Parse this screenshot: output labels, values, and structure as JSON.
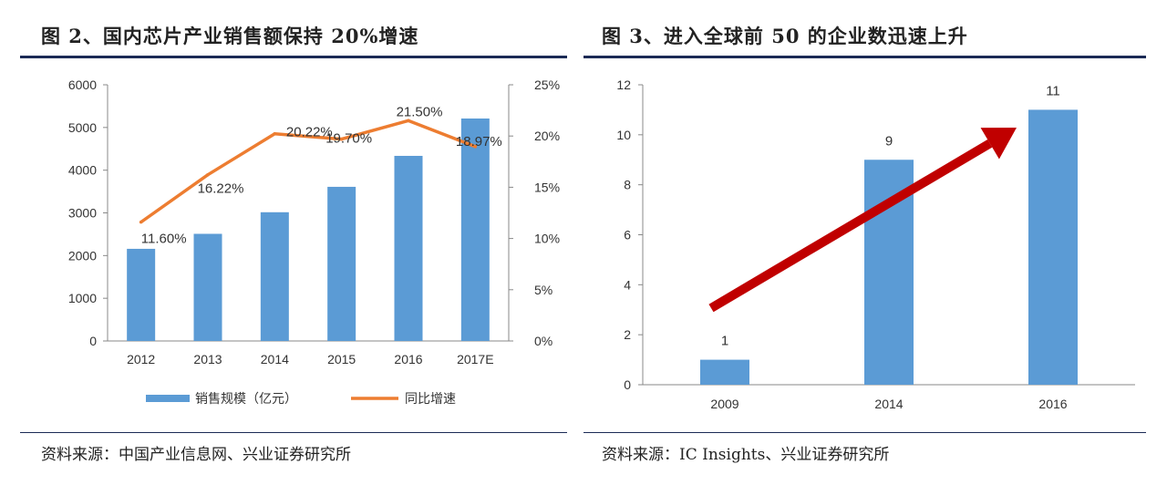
{
  "figures": [
    {
      "title": "图 2、国内芯片产业销售额保持 20%增速",
      "source": "资料来源：中国产业信息网、兴业证券研究所"
    },
    {
      "title": "图 3、进入全球前 50 的企业数迅速上升",
      "source": "资料来源：IC Insights、兴业证券研究所"
    }
  ],
  "colors": {
    "bar": "#5b9bd5",
    "line": "#ed7d31",
    "arrow": "#c00000",
    "rule": "#1b2a55"
  },
  "chart_data": [
    {
      "type": "bar+line",
      "title": "图 2、国内芯片产业销售额保持 20%增速",
      "categories": [
        "2012",
        "2013",
        "2014",
        "2015",
        "2016",
        "2017E"
      ],
      "series": [
        {
          "name": "销售规模（亿元）",
          "type": "bar",
          "axis": "left",
          "values": [
            2158,
            2509,
            3015,
            3610,
            4335,
            5210
          ]
        },
        {
          "name": "同比增速",
          "type": "line",
          "axis": "right",
          "values": [
            11.6,
            16.22,
            20.22,
            19.7,
            21.5,
            18.97
          ],
          "labels": [
            "11.60%",
            "16.22%",
            "20.22%",
            "19.70%",
            "21.50%",
            "18.97%"
          ]
        }
      ],
      "y_left": {
        "range": [
          0,
          6000
        ],
        "ticks": [
          "0",
          "1000",
          "2000",
          "3000",
          "4000",
          "5000",
          "6000"
        ]
      },
      "y_right": {
        "range": [
          0,
          25
        ],
        "ticks": [
          "0%",
          "5%",
          "10%",
          "15%",
          "20%",
          "25%"
        ]
      },
      "legend": [
        "销售规模（亿元）",
        "同比增速"
      ],
      "legend_position": "bottom"
    },
    {
      "type": "bar",
      "title": "图 3、进入全球前 50 的企业数迅速上升",
      "categories": [
        "2009",
        "2014",
        "2016"
      ],
      "values": [
        1,
        9,
        11
      ],
      "value_labels": [
        "1",
        "9",
        "11"
      ],
      "ylim": [
        0,
        12
      ],
      "y_ticks": [
        "0",
        "2",
        "4",
        "6",
        "8",
        "10",
        "12"
      ],
      "annotation": "red upward trend arrow"
    }
  ]
}
